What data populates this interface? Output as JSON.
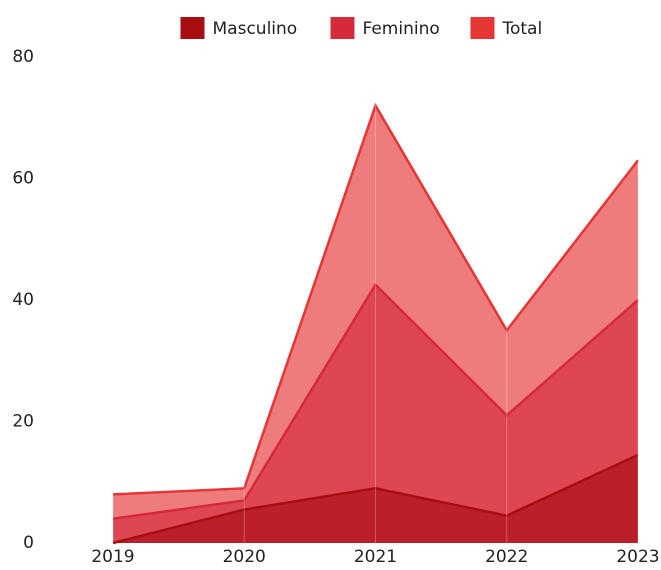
{
  "chart_data": {
    "type": "area",
    "categories": [
      "2019",
      "2020",
      "2021",
      "2022",
      "2023"
    ],
    "series": [
      {
        "name": "Masculino",
        "color": "#a80d12",
        "values": [
          0,
          5.5,
          9,
          4.5,
          14.5
        ]
      },
      {
        "name": "Feminino",
        "color": "#d42a3a",
        "values": [
          4,
          7,
          42.5,
          21,
          40
        ]
      },
      {
        "name": "Total",
        "color": "#e63535",
        "values": [
          8,
          9,
          72,
          35,
          63
        ]
      }
    ],
    "ylim": [
      0,
      80
    ],
    "yticks": [
      0,
      20,
      40,
      60,
      80
    ],
    "legend": "top"
  }
}
